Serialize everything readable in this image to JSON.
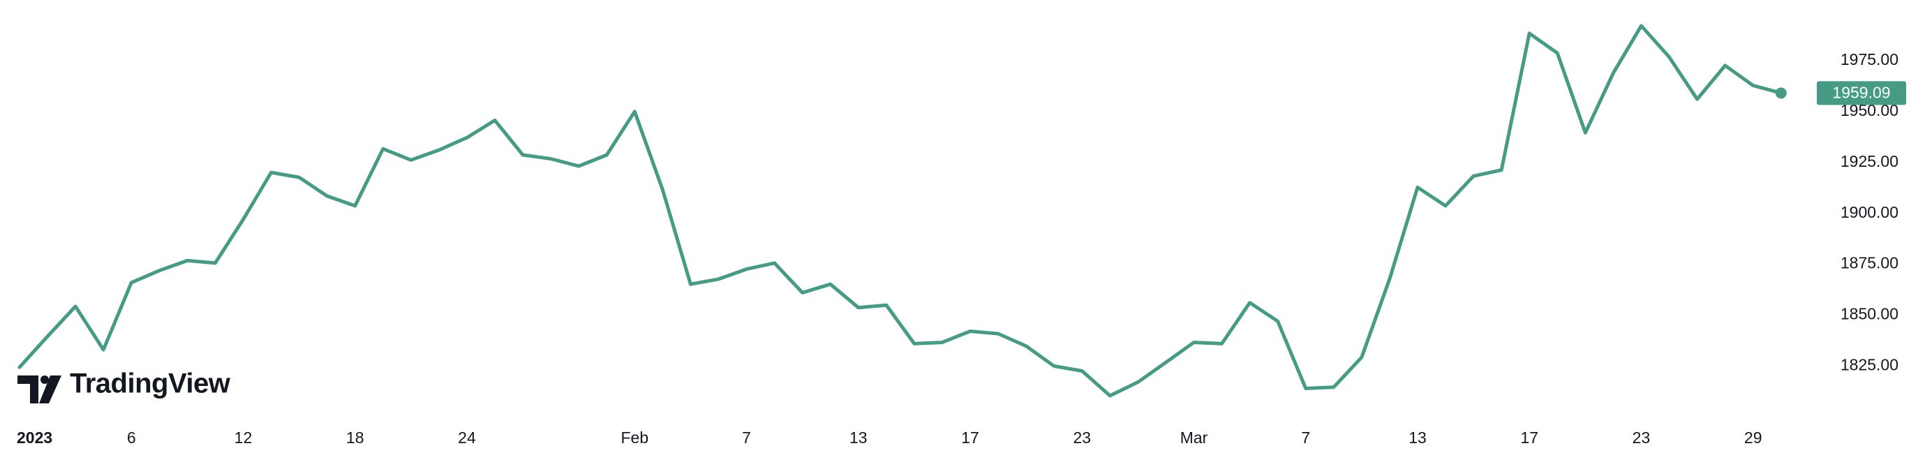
{
  "chart_data": {
    "type": "line",
    "watermark": "TradingView",
    "color": "#459b84",
    "categories": [
      "2023",
      null,
      null,
      null,
      "6",
      null,
      null,
      null,
      "12",
      null,
      null,
      null,
      "18",
      null,
      null,
      null,
      "24",
      null,
      null,
      null,
      null,
      null,
      "Feb",
      null,
      null,
      null,
      "7",
      null,
      null,
      null,
      "13",
      null,
      null,
      null,
      "17",
      null,
      null,
      null,
      "23",
      null,
      null,
      null,
      "Mar",
      null,
      null,
      null,
      "7",
      null,
      null,
      null,
      "13",
      null,
      null,
      null,
      "17",
      null,
      null,
      null,
      "23",
      null,
      null,
      null,
      "29",
      null
    ],
    "values": [
      1824.4,
      1839.6,
      1854.3,
      1833.0,
      1866.0,
      1871.9,
      1876.8,
      1875.6,
      1897.0,
      1920.1,
      1917.7,
      1908.5,
      1903.7,
      1931.7,
      1926.2,
      1931.1,
      1937.2,
      1945.7,
      1928.7,
      1926.8,
      1923.2,
      1928.7,
      1950.0,
      1911.6,
      1865.2,
      1867.7,
      1872.6,
      1875.6,
      1861.0,
      1865.2,
      1853.7,
      1854.9,
      1836.0,
      1836.6,
      1842.1,
      1840.9,
      1834.8,
      1825.0,
      1822.6,
      1810.4,
      1817.1,
      1826.8,
      1836.6,
      1836.0,
      1856.1,
      1847.0,
      1814.0,
      1814.6,
      1829.3,
      1867.7,
      1912.8,
      1903.7,
      1918.3,
      1921.3,
      1988.4,
      1978.7,
      1939.6,
      1968.9,
      1992.1,
      1976.8,
      1956.1,
      1972.6,
      1962.8,
      1959.09
    ],
    "ylim": [
      1799.1,
      2004.8
    ],
    "yticks": [
      {
        "value": 1825,
        "label": "1825.00"
      },
      {
        "value": 1850,
        "label": "1850.00"
      },
      {
        "value": 1875,
        "label": "1875.00"
      },
      {
        "value": 1900,
        "label": "1900.00"
      },
      {
        "value": 1925,
        "label": "1925.00"
      },
      {
        "value": 1950,
        "label": "1950.00"
      },
      {
        "value": 1975,
        "label": "1975.00"
      }
    ],
    "grid": false
  }
}
